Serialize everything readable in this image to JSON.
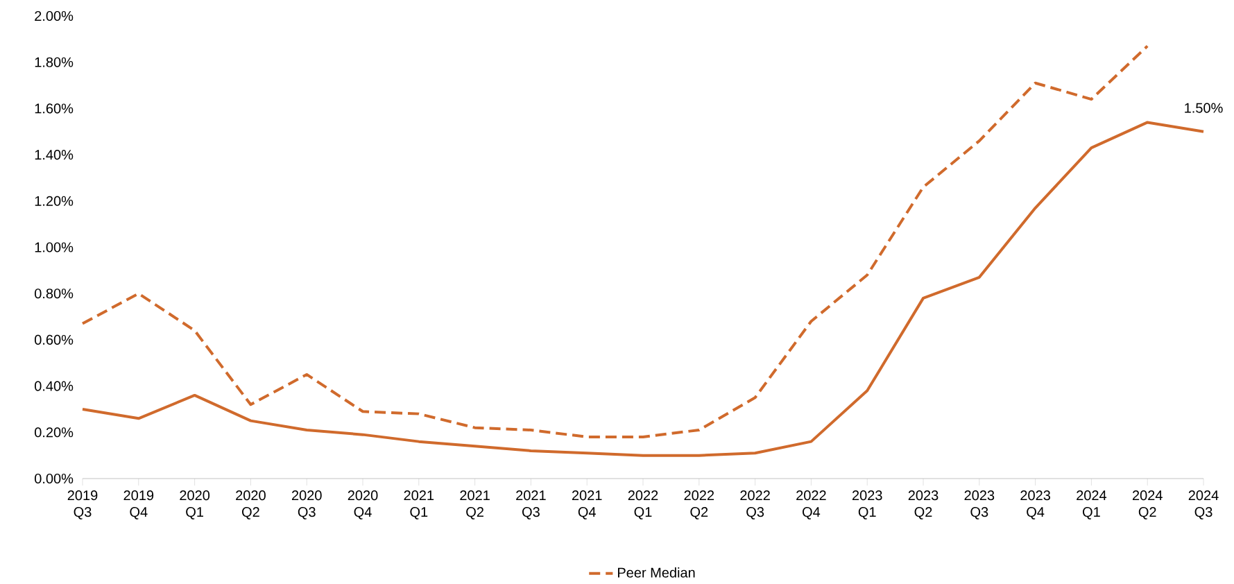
{
  "chart_data": {
    "type": "line",
    "categories": [
      "2019 Q3",
      "2019 Q4",
      "2020 Q1",
      "2020 Q2",
      "2020 Q3",
      "2020 Q4",
      "2021 Q1",
      "2021 Q2",
      "2021 Q3",
      "2021 Q4",
      "2022 Q1",
      "2022 Q2",
      "2022 Q3",
      "2022 Q4",
      "2023 Q1",
      "2023 Q2",
      "2023 Q3",
      "2023 Q4",
      "2024 Q1",
      "2024 Q2",
      "2024 Q3"
    ],
    "series": [
      {
        "color": "#d06a2c",
        "line_style": "solid",
        "values": [
          0.3,
          0.26,
          0.36,
          0.25,
          0.21,
          0.19,
          0.16,
          0.14,
          0.12,
          0.11,
          0.1,
          0.1,
          0.11,
          0.16,
          0.38,
          0.78,
          0.87,
          1.17,
          1.43,
          1.54,
          1.5
        ]
      },
      {
        "name": "Peer Median",
        "color": "#d06a2c",
        "line_style": "dashed",
        "values": [
          0.67,
          0.8,
          0.64,
          0.32,
          0.45,
          0.29,
          0.28,
          0.22,
          0.21,
          0.18,
          0.18,
          0.21,
          0.35,
          0.68,
          0.88,
          1.26,
          1.46,
          1.71,
          1.64,
          1.87,
          null
        ]
      }
    ],
    "ylim": [
      0,
      2
    ],
    "yticks": [
      {
        "value": 0,
        "label": "0.00%"
      },
      {
        "value": 0.2,
        "label": "0.20%"
      },
      {
        "value": 0.4,
        "label": "0.40%"
      },
      {
        "value": 0.6,
        "label": "0.60%"
      },
      {
        "value": 0.8,
        "label": "0.80%"
      },
      {
        "value": 1.0,
        "label": "1.00%"
      },
      {
        "value": 1.2,
        "label": "1.20%"
      },
      {
        "value": 1.4,
        "label": "1.40%"
      },
      {
        "value": 1.6,
        "label": "1.60%"
      },
      {
        "value": 1.8,
        "label": "1.80%"
      },
      {
        "value": 2.0,
        "label": "2.00%"
      }
    ],
    "annotations": [
      {
        "text": "1.50%",
        "x": "2024 Q3",
        "y": 1.5
      }
    ],
    "grid": false,
    "legend": "bottom",
    "marker": "none"
  }
}
